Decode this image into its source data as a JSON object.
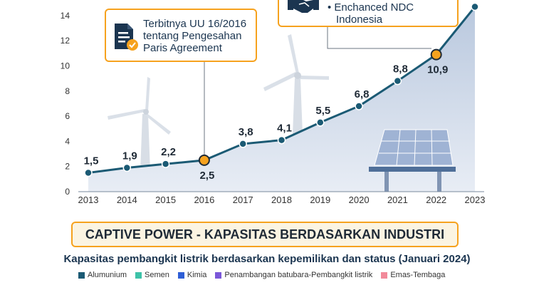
{
  "chart_data": {
    "type": "area",
    "x": [
      "2013",
      "2014",
      "2015",
      "2016",
      "2017",
      "2018",
      "2019",
      "2020",
      "2021",
      "2022",
      "2023"
    ],
    "values": [
      1.5,
      1.9,
      2.2,
      2.5,
      3.8,
      4.1,
      5.5,
      6.8,
      8.8,
      10.9,
      14.7
    ],
    "data_labels": [
      "1,5",
      "1,9",
      "2,2",
      "2,5",
      "3,8",
      "4,1",
      "5,5",
      "6,8",
      "8,8",
      "10,9",
      ""
    ],
    "highlighted": [
      "2016",
      "2022"
    ],
    "y_ticks": [
      "0",
      "2",
      "4",
      "6",
      "8",
      "10",
      "12",
      "14"
    ],
    "ylim": [
      0,
      15
    ],
    "grid": false,
    "colors": {
      "line": "#1b5a74",
      "area": "#b5c6dd",
      "highlight": "#f6a21e",
      "text": "#1f2a36"
    }
  },
  "callouts": [
    {
      "lines": [
        "Terbitnya UU 16/2016",
        "tentang Pengesahan",
        "Paris Agreement"
      ],
      "icon": "document-check-icon"
    },
    {
      "lines": [
        "• Enchanced NDC",
        "Indonesia"
      ],
      "icon": "handshake-icon"
    }
  ],
  "section_title": "CAPTIVE POWER - KAPASITAS BERDASARKAN INDUSTRI",
  "subtitle": "Kapasitas pembangkit listrik berdasarkan kepemilikan dan status (Januari 2024)",
  "legend": [
    {
      "label": "Alumunium",
      "color": "#1b5a74"
    },
    {
      "label": "Semen",
      "color": "#3dc2a8"
    },
    {
      "label": "Kimia",
      "color": "#2f5fd6"
    },
    {
      "label": "Penambangan batubara-Pembangkit listrik",
      "color": "#7b58d9"
    },
    {
      "label": "Emas-Tembaga",
      "color": "#f28a9a"
    }
  ]
}
